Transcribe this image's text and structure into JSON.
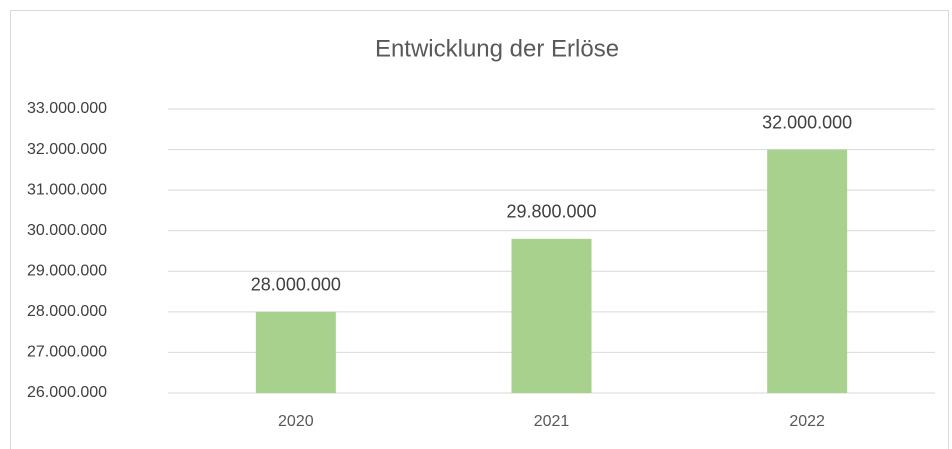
{
  "chart_data": {
    "type": "bar",
    "title": "Entwicklung der Erlöse",
    "categories": [
      "2020",
      "2021",
      "2022"
    ],
    "values": [
      28000000,
      29800000,
      32000000
    ],
    "value_labels": [
      "28.000.000",
      "29.800.000",
      "32.000.000"
    ],
    "color": "#a9d18e",
    "ylim": [
      26000000,
      33000000
    ],
    "yticks": [
      {
        "value": 26000000,
        "label": "26.000.000"
      },
      {
        "value": 27000000,
        "label": "27.000.000"
      },
      {
        "value": 28000000,
        "label": "28.000.000"
      },
      {
        "value": 29000000,
        "label": "29.000.000"
      },
      {
        "value": 30000000,
        "label": "30.000.000"
      },
      {
        "value": 31000000,
        "label": "31.000.000"
      },
      {
        "value": 32000000,
        "label": "32.000.000"
      },
      {
        "value": 33000000,
        "label": "33.000.000"
      }
    ],
    "grid": true
  }
}
